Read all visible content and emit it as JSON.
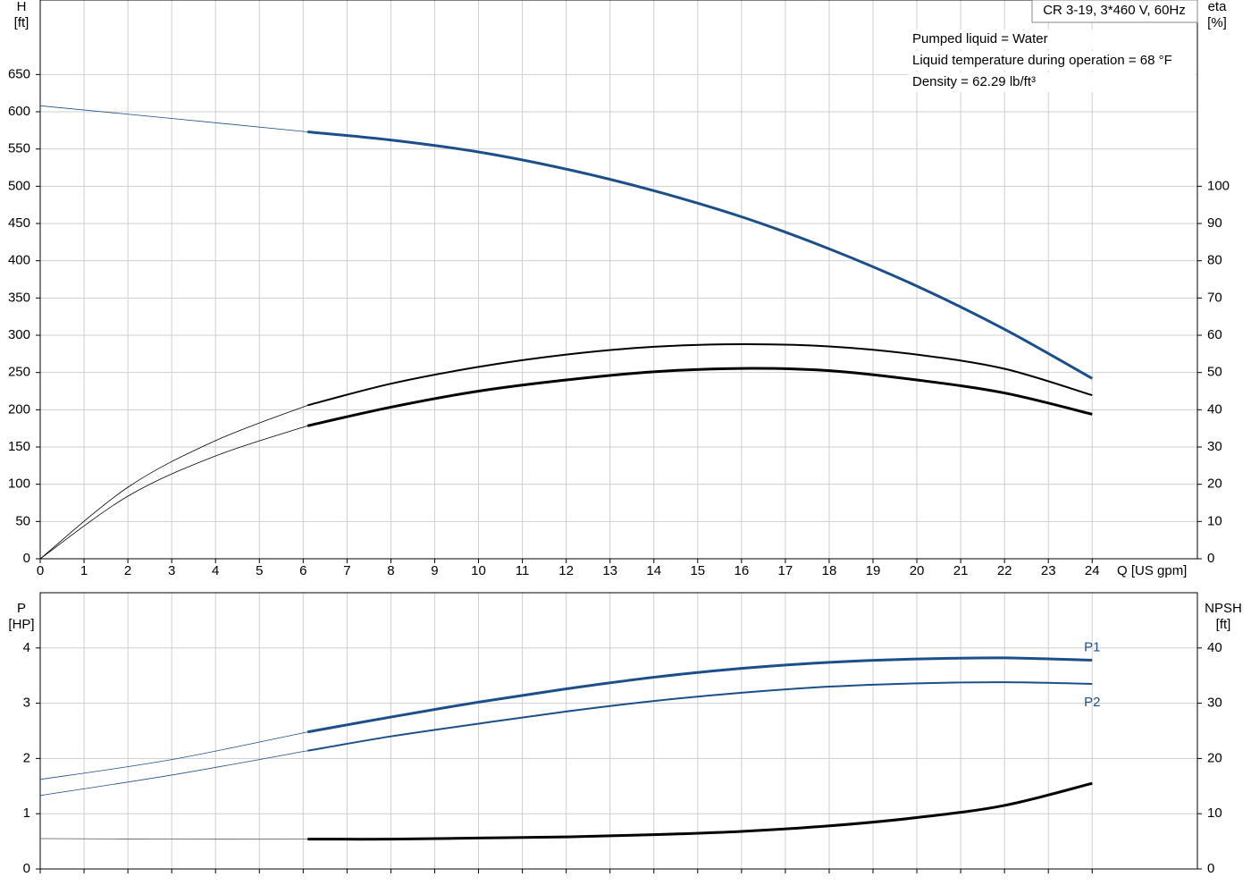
{
  "chart_data": [
    {
      "type": "line",
      "y_label": [
        "H",
        "[ft]"
      ],
      "y2_label": [
        "eta",
        "[%]"
      ],
      "x_label": "Q [US gpm]",
      "info_title": "CR 3-19, 3*460 V, 60Hz",
      "info_lines": [
        "Pumped liquid = Water",
        "Liquid temperature during operation = 68 °F",
        "Density = 62.29 lb/ft³"
      ],
      "xlim": [
        0,
        26.4
      ],
      "ylim": [
        0,
        750
      ],
      "y2lim": [
        0,
        150
      ],
      "grid": true,
      "show_xtick_labels": true,
      "xticks": [
        0,
        1,
        2,
        3,
        4,
        5,
        6,
        7,
        8,
        9,
        10,
        11,
        12,
        13,
        14,
        15,
        16,
        17,
        18,
        19,
        20,
        21,
        22,
        23,
        24
      ],
      "yticks": [
        0,
        50,
        100,
        150,
        200,
        250,
        300,
        350,
        400,
        450,
        500,
        550,
        600,
        650
      ],
      "y2ticks": [
        0,
        10,
        20,
        30,
        40,
        50,
        60,
        70,
        80,
        90,
        100
      ],
      "series": [
        {
          "color": "#1b4f8a",
          "weight": "thin",
          "x": [
            0,
            3,
            6.1
          ],
          "values": [
            608,
            591,
            573
          ]
        },
        {
          "color": "#1b4f8a",
          "weight": "thick",
          "x": [
            6.1,
            8,
            10,
            12,
            14,
            16,
            18,
            20,
            22,
            24
          ],
          "values": [
            573,
            562,
            546,
            523,
            494,
            459,
            416,
            366,
            308,
            242
          ]
        },
        {
          "color": "#000000",
          "weight": "thin",
          "axis": "y2",
          "x": [
            0,
            2,
            4,
            6.1
          ],
          "values": [
            0,
            19.2,
            31.7,
            41.2
          ]
        },
        {
          "color": "#000000",
          "weight": "medium",
          "axis": "y2",
          "x": [
            6.1,
            8,
            10,
            12,
            14,
            16,
            18,
            20,
            22,
            24
          ],
          "values": [
            41.2,
            47,
            51.5,
            54.8,
            56.9,
            57.6,
            57,
            54.8,
            51,
            43.9
          ]
        },
        {
          "color": "#000000",
          "weight": "thin",
          "axis": "y2",
          "x": [
            0,
            2,
            4,
            6.1
          ],
          "values": [
            0,
            16.8,
            27.6,
            35.7
          ]
        },
        {
          "color": "#000000",
          "weight": "thick",
          "axis": "y2",
          "x": [
            6.1,
            8,
            10,
            12,
            14,
            16,
            18,
            20,
            22,
            24
          ],
          "values": [
            35.7,
            40.7,
            45,
            48,
            50.2,
            51.1,
            50.5,
            48,
            44.5,
            38.8
          ]
        }
      ]
    },
    {
      "type": "line",
      "y_label": [
        "P",
        "[HP]"
      ],
      "y2_label": [
        "NPSH",
        "[ft]"
      ],
      "xlim": [
        0,
        26.4
      ],
      "ylim": [
        0,
        5
      ],
      "y2lim": [
        0,
        50
      ],
      "grid": true,
      "show_xtick_labels": false,
      "xticks": [
        0,
        1,
        2,
        3,
        4,
        5,
        6,
        7,
        8,
        9,
        10,
        11,
        12,
        13,
        14,
        15,
        16,
        17,
        18,
        19,
        20,
        21,
        22,
        23,
        24
      ],
      "yticks": [
        0,
        1,
        2,
        3,
        4
      ],
      "y2ticks": [
        0,
        10,
        20,
        30,
        40
      ],
      "series": [
        {
          "color": "#1b4f8a",
          "weight": "thin",
          "x": [
            0,
            3,
            6.1
          ],
          "values": [
            1.62,
            1.98,
            2.48
          ]
        },
        {
          "name": "P1",
          "color": "#1b4f8a",
          "weight": "thick",
          "x": [
            6.1,
            8,
            10,
            12,
            14,
            16,
            18,
            20,
            22,
            24
          ],
          "values": [
            2.48,
            2.75,
            3.02,
            3.26,
            3.47,
            3.63,
            3.74,
            3.8,
            3.82,
            3.78
          ]
        },
        {
          "color": "#1b4f8a",
          "weight": "thin",
          "x": [
            0,
            3,
            6.1
          ],
          "values": [
            1.33,
            1.7,
            2.14
          ]
        },
        {
          "name": "P2",
          "color": "#1b4f8a",
          "weight": "medium",
          "x": [
            6.1,
            8,
            10,
            12,
            14,
            16,
            18,
            20,
            22,
            24
          ],
          "values": [
            2.14,
            2.4,
            2.63,
            2.85,
            3.04,
            3.19,
            3.3,
            3.36,
            3.38,
            3.35
          ]
        },
        {
          "color": "#555555",
          "weight": "thin",
          "axis": "y2",
          "x": [
            0,
            3,
            6.1
          ],
          "values": [
            5.5,
            5.4,
            5.4
          ]
        },
        {
          "color": "#000000",
          "weight": "thick",
          "axis": "y2",
          "x": [
            6.1,
            8,
            10,
            12,
            14,
            16,
            18,
            20,
            22,
            24
          ],
          "values": [
            5.4,
            5.4,
            5.6,
            5.8,
            6.2,
            6.8,
            7.8,
            9.3,
            11.5,
            15.5
          ]
        }
      ]
    }
  ]
}
